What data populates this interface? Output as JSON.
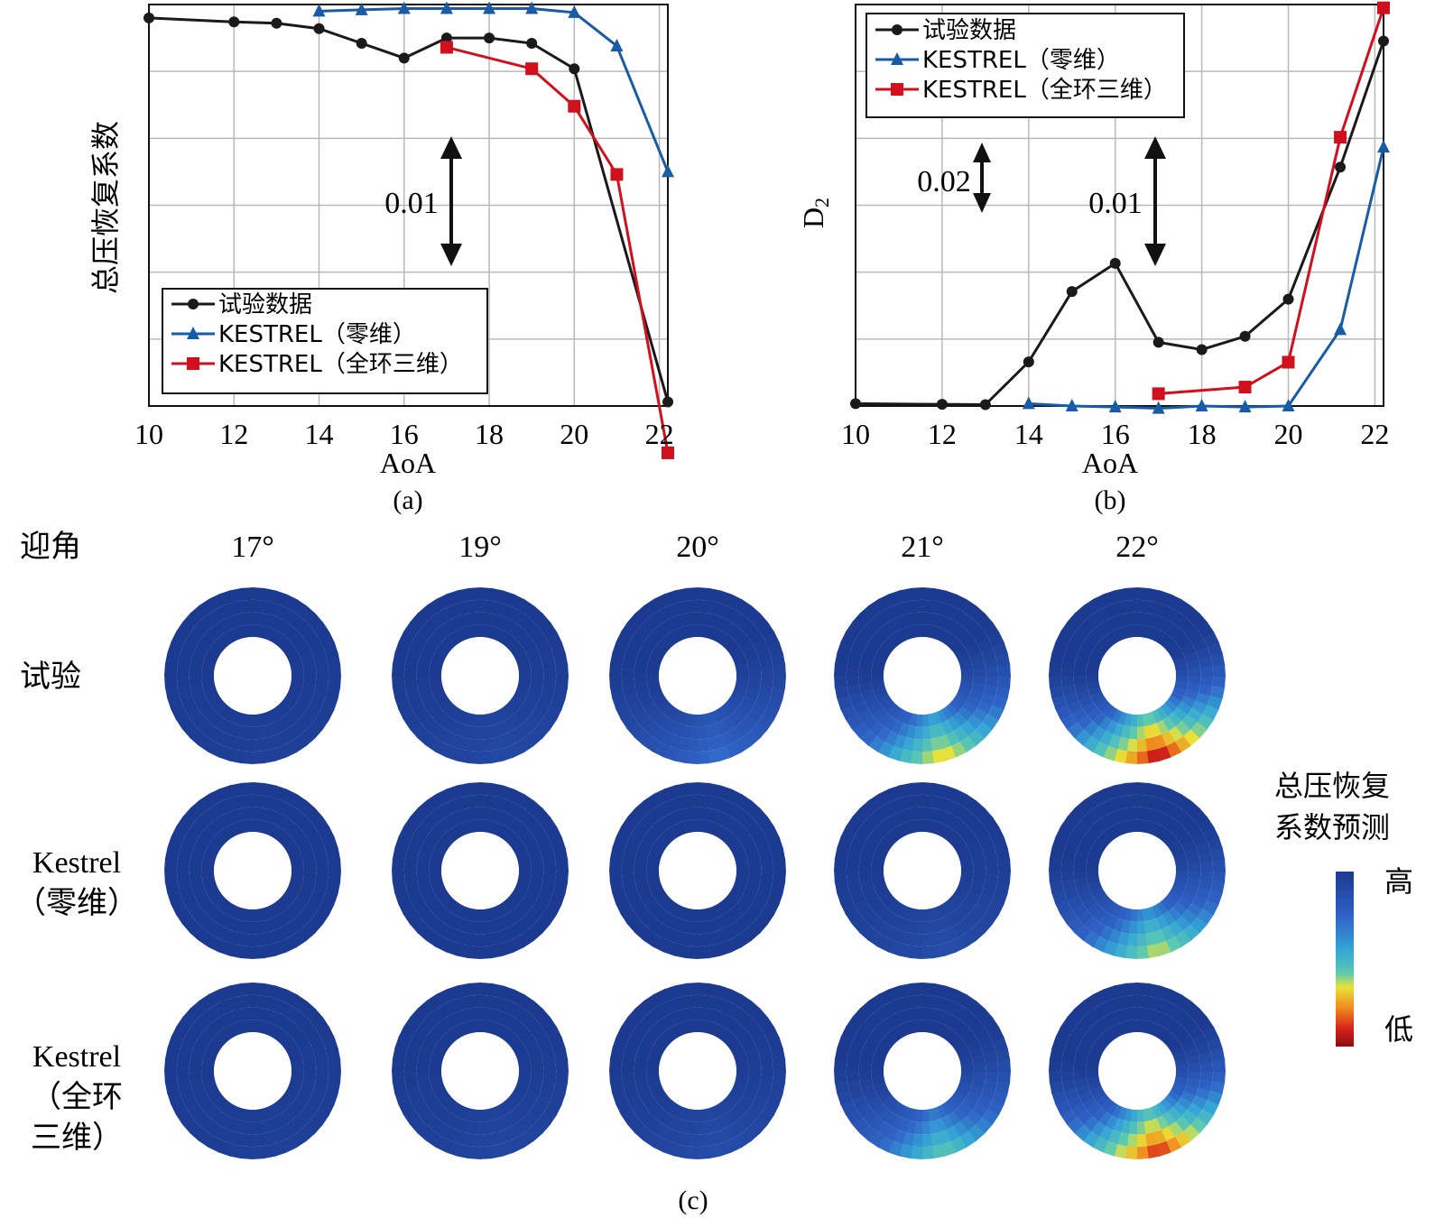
{
  "colors": {
    "experiment": "#1a1a1a",
    "kestrel_0d": "#1a5ba6",
    "kestrel_3d": "#d0101c",
    "grid": "#b9b9b9",
    "field_high": "#1e3a8f",
    "field_low": "#8b0a12"
  },
  "chart_data": [
    {
      "panel": "(a)",
      "type": "line",
      "xlabel": "AoA",
      "ylabel": "总压恢复系数",
      "xlim": [
        10,
        22.2
      ],
      "xticks": [
        "10",
        "12",
        "14",
        "16",
        "18",
        "20",
        "22"
      ],
      "ylim": [
        0.9635,
        0.9935
      ],
      "y_tick_labels_shown": false,
      "grid": true,
      "legend_position": "bottom-left",
      "scale_annotation": "0.01",
      "series": [
        {
          "name": "试验数据",
          "marker": "circle",
          "color": "#1a1a1a",
          "x": [
            10,
            12,
            13,
            14,
            15,
            16,
            17,
            18,
            19,
            20,
            22.2
          ],
          "y": [
            0.9925,
            0.9922,
            0.9921,
            0.9917,
            0.9906,
            0.9895,
            0.991,
            0.991,
            0.9906,
            0.9887,
            0.9638
          ]
        },
        {
          "name": "KESTREL（零维）",
          "marker": "triangle",
          "color": "#1a5ba6",
          "x": [
            14,
            15,
            16,
            17,
            18,
            19,
            20,
            21,
            22.2
          ],
          "y": [
            0.993,
            0.9931,
            0.9932,
            0.9932,
            0.9932,
            0.9932,
            0.9929,
            0.9904,
            0.981
          ]
        },
        {
          "name": "KESTREL（全环三维）",
          "marker": "square",
          "color": "#d0101c",
          "x": [
            17,
            19,
            20,
            21,
            22.2
          ],
          "y": [
            0.9903,
            0.9887,
            0.9859,
            0.9808,
            0.96
          ]
        }
      ]
    },
    {
      "panel": "(b)",
      "type": "line",
      "xlabel": "AoA",
      "ylabel": "D2",
      "xlim": [
        10,
        22.2
      ],
      "xticks": [
        "10",
        "12",
        "14",
        "16",
        "18",
        "20",
        "22"
      ],
      "ylim": [
        0,
        0.121
      ],
      "y_tick_labels_shown": false,
      "grid": true,
      "legend_position": "top-left",
      "scale_annotations": [
        "0.02",
        "0.01"
      ],
      "series": [
        {
          "name": "试验数据",
          "marker": "circle",
          "color": "#1a1a1a",
          "x": [
            10,
            12,
            13,
            14,
            15,
            16,
            17,
            18,
            19,
            20,
            21.2,
            22.2
          ],
          "y": [
            0.0007,
            0.0005,
            0.0004,
            0.0133,
            0.0345,
            0.043,
            0.0192,
            0.017,
            0.021,
            0.0322,
            0.072,
            0.11
          ]
        },
        {
          "name": "KESTREL（零维）",
          "marker": "triangle",
          "color": "#1a5ba6",
          "x": [
            14,
            15,
            16,
            17,
            18,
            19,
            20,
            21.2,
            22.2
          ],
          "y": [
            0.0007,
            0.0,
            -0.0003,
            -0.0007,
            0.0,
            -0.0003,
            0.0,
            0.023,
            0.078
          ]
        },
        {
          "name": "KESTREL（全环三维）",
          "marker": "square",
          "color": "#d0101c",
          "x": [
            17,
            19,
            20,
            21.2,
            22.2
          ],
          "y": [
            0.0037,
            0.0057,
            0.0132,
            0.081,
            0.12
          ]
        }
      ]
    }
  ],
  "panel_labels": {
    "a": "(a)",
    "b": "(b)",
    "c": "(c)"
  },
  "field_maps": {
    "row_header": "迎角",
    "angles": [
      "17°",
      "19°",
      "20°",
      "21°",
      "22°"
    ],
    "rows": [
      {
        "label_lines": [
          "试验"
        ],
        "severity": [
          0.05,
          0.12,
          0.35,
          0.75,
          1.0
        ]
      },
      {
        "label_lines": [
          "Kestrel",
          "（零维）"
        ],
        "severity": [
          0.0,
          0.0,
          0.0,
          0.15,
          0.7
        ]
      },
      {
        "label_lines": [
          "Kestrel",
          "（全环",
          "三维）"
        ],
        "severity": [
          0.05,
          0.1,
          0.15,
          0.6,
          0.95
        ]
      }
    ],
    "colorbar": {
      "title_lines": [
        "总压恢复",
        "系数预测"
      ],
      "high_label": "高",
      "low_label": "低"
    }
  }
}
